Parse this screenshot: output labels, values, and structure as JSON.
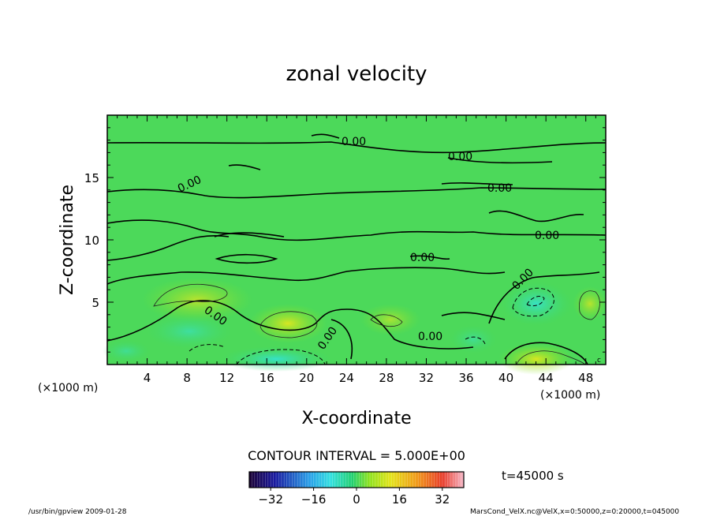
{
  "chart_data": {
    "type": "heatmap",
    "title": "zonal velocity",
    "xlabel": "X-coordinate",
    "ylabel": "Z-coordinate",
    "x_unit": "(×1000 m)",
    "y_unit": "(×1000 m)",
    "xlim": [
      0,
      50
    ],
    "ylim": [
      0,
      20
    ],
    "x_ticks": [
      4,
      8,
      12,
      16,
      20,
      24,
      28,
      32,
      36,
      40,
      44,
      48
    ],
    "y_ticks": [
      5,
      10,
      15
    ],
    "contour_interval": "CONTOUR INTERVAL = 5.000E+00",
    "contour_labels": [
      "0.00",
      "0.00",
      "0.00",
      "0.00",
      "0.00",
      "0.00",
      "0.00",
      "0.00",
      "0.00",
      "0.00"
    ],
    "colorbar_ticks": [
      -32,
      -16,
      0,
      16,
      32
    ],
    "colorbar_range": [
      -40,
      40
    ],
    "time_label": "t=45000 s",
    "footer_left": "/usr/bin/gpview  2009-01-28",
    "footer_right": "MarsCond_VelX.nc@VelX,x=0:50000,z=0:20000,t=045000",
    "corner_mark": "c"
  }
}
